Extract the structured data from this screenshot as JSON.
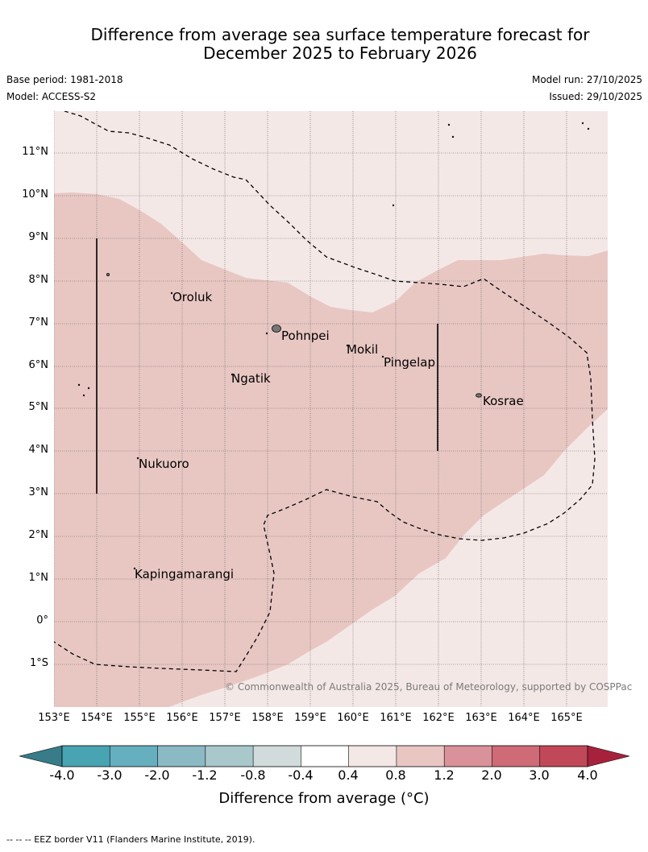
{
  "title": {
    "line1": "Difference from average sea surface temperature forecast for",
    "line2": "December 2025 to February 2026"
  },
  "meta": {
    "base_period": "Base period: 1981-2018",
    "model": "Model: ACCESS-S2",
    "model_run": "Model run: 27/10/2025",
    "issued": "Issued: 29/10/2025"
  },
  "map": {
    "lat_labels": [
      "11°N",
      "10°N",
      "9°N",
      "8°N",
      "7°N",
      "6°N",
      "5°N",
      "4°N",
      "3°N",
      "2°N",
      "1°N",
      "0°",
      "1°S"
    ],
    "lon_labels": [
      "153°E",
      "154°E",
      "155°E",
      "156°E",
      "157°E",
      "158°E",
      "159°E",
      "160°E",
      "161°E",
      "162°E",
      "163°E",
      "164°E",
      "165°E"
    ],
    "places": [
      "Oroluk",
      "Pohnpei",
      "Mokil",
      "Pingelap",
      "Ngatik",
      "Kosrae",
      "Nukuoro",
      "Kapingamarangi"
    ],
    "copyright": "© Commonwealth of Australia 2025, Bureau of Meteorology, supported by COSPPac",
    "colors": {
      "band_0_4_0_8": "#f4e8e7",
      "band_0_8_1_2": "#e8c7c3"
    }
  },
  "colorbar": {
    "labels": [
      "-4.0",
      "-3.0",
      "-2.0",
      "-1.2",
      "-0.8",
      "-0.4",
      "0.4",
      "0.8",
      "1.2",
      "2.0",
      "3.0",
      "4.0"
    ],
    "colors": [
      "#48a3b3",
      "#66afbf",
      "#8bbac5",
      "#a9c8cb",
      "#d1dbdc",
      "#ffffff",
      "#f4e8e7",
      "#e8c7c3",
      "#d9929a",
      "#ce6b76",
      "#c04858"
    ],
    "under_color": "#377c88",
    "over_color": "#a8213c",
    "title": "Difference from average (°C)"
  },
  "footnote": "--  --  -- EEZ border V11 (Flanders Marine Institute, 2019)."
}
